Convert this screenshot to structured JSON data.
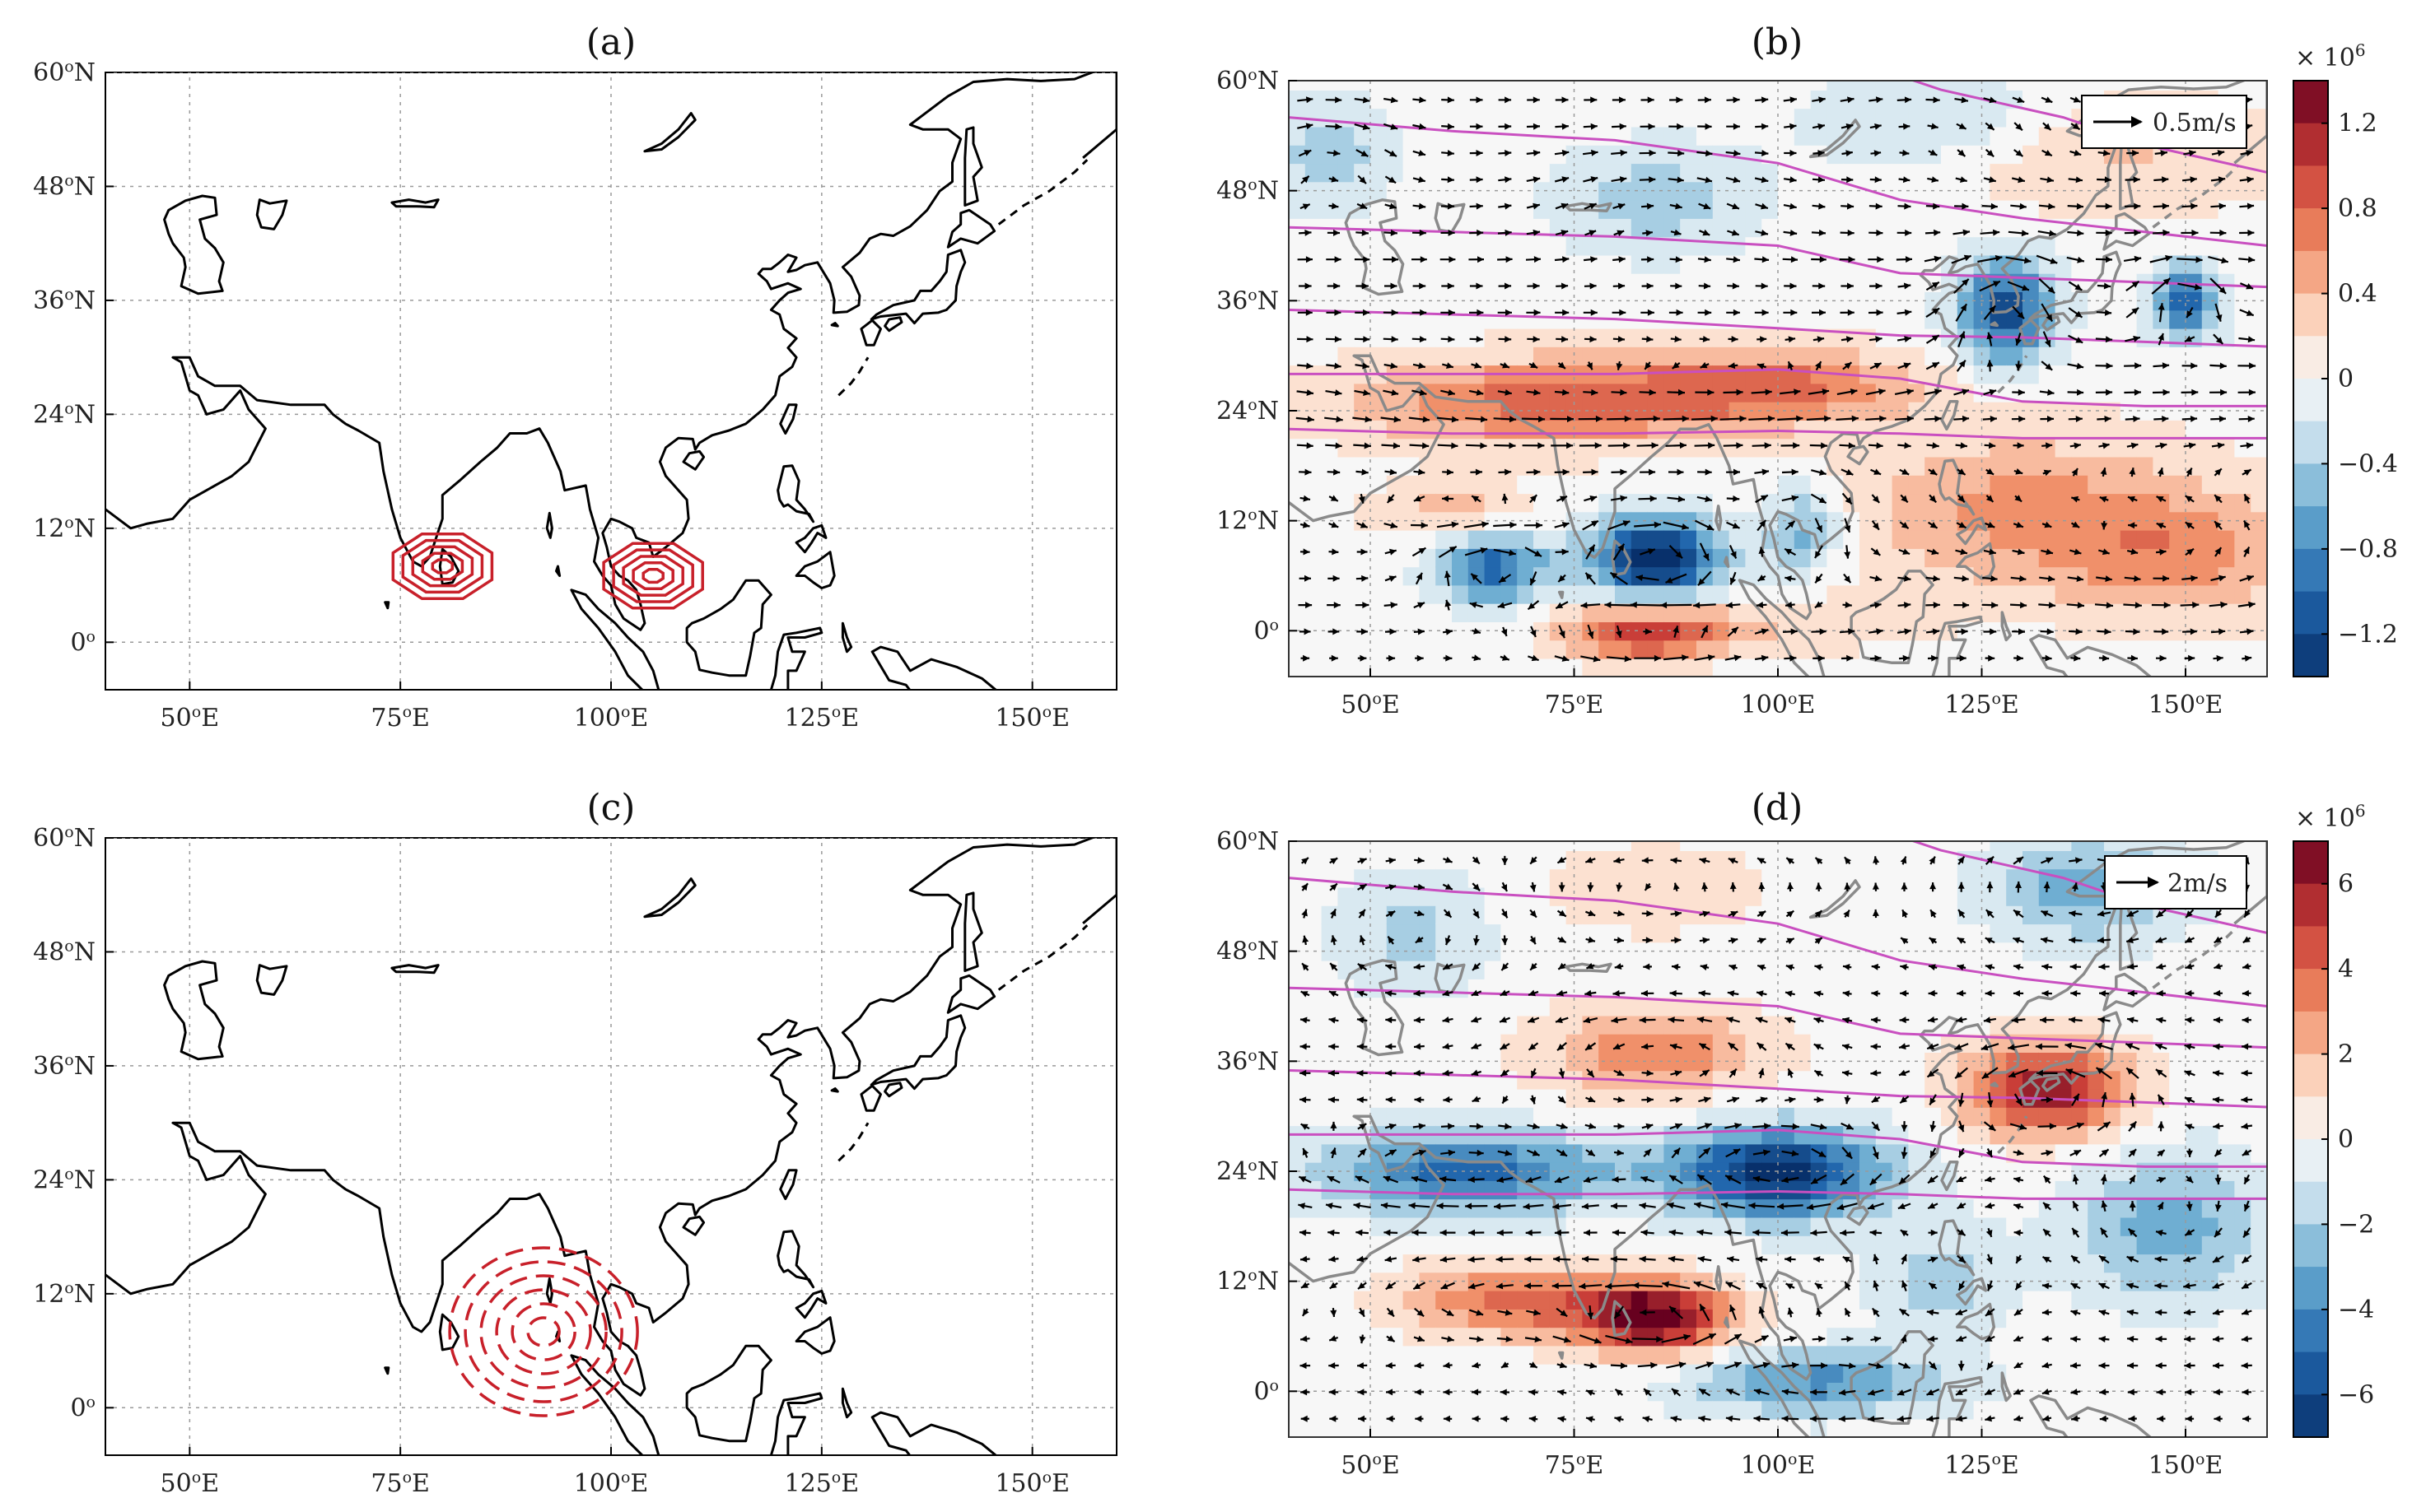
{
  "figure": {
    "panel_titles": [
      "(a)",
      "(b)",
      "(c)",
      "(d)"
    ],
    "lat_ticks": [
      "0",
      "12",
      "24",
      "36",
      "48",
      "60"
    ],
    "lon_ticks": [
      "50",
      "75",
      "100",
      "125",
      "150"
    ],
    "lat_suffix": "N",
    "lon_suffix": "E",
    "degree_mark": "o"
  },
  "map_extent": {
    "lon_range": [
      40,
      160
    ],
    "lat_range": [
      -5,
      60
    ]
  },
  "panels": {
    "a": {
      "title": "(a)",
      "forcing": "positive heating",
      "centers": [
        [
          80,
          8
        ],
        [
          105,
          7
        ]
      ],
      "contour_color": "#c8202a"
    },
    "b": {
      "title": "(b)",
      "reference_vector_label": "0.5m/s",
      "colorbar": {
        "multiplier": "× 10",
        "exponent": "6",
        "range": [
          -1.4,
          1.4
        ],
        "ticks": [
          "1.2",
          "0.8",
          "0.4",
          "0",
          "−0.4",
          "−0.8",
          "−1.2"
        ]
      }
    },
    "c": {
      "title": "(c)",
      "forcing": "negative heating (dashed)",
      "centers": [
        [
          92,
          8
        ]
      ],
      "contour_color": "#c8202a"
    },
    "d": {
      "title": "(d)",
      "reference_vector_label": "2m/s",
      "colorbar": {
        "multiplier": "× 10",
        "exponent": "6",
        "range": [
          -7,
          7
        ],
        "ticks": [
          "6",
          "4",
          "2",
          "0",
          "−2",
          "−4",
          "−6"
        ]
      }
    }
  },
  "colors": {
    "coast_line": "#000000",
    "coast_gray": "#8a8a8a",
    "jet_contour": "#c94fc0",
    "forcing": "#c8202a"
  }
}
